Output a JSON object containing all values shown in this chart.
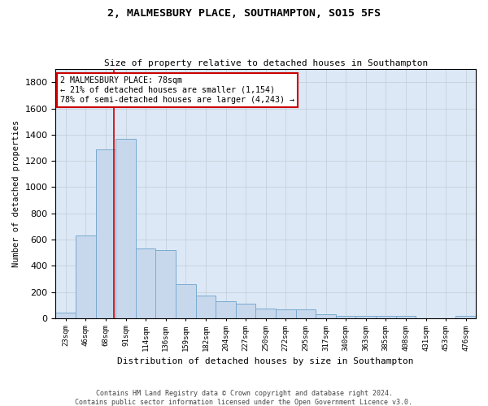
{
  "title": "2, MALMESBURY PLACE, SOUTHAMPTON, SO15 5FS",
  "subtitle": "Size of property relative to detached houses in Southampton",
  "xlabel": "Distribution of detached houses by size in Southampton",
  "ylabel": "Number of detached properties",
  "categories": [
    "23sqm",
    "46sqm",
    "68sqm",
    "91sqm",
    "114sqm",
    "136sqm",
    "159sqm",
    "182sqm",
    "204sqm",
    "227sqm",
    "250sqm",
    "272sqm",
    "295sqm",
    "317sqm",
    "340sqm",
    "363sqm",
    "385sqm",
    "408sqm",
    "431sqm",
    "453sqm",
    "476sqm"
  ],
  "values": [
    40,
    630,
    1290,
    1370,
    530,
    520,
    260,
    175,
    130,
    110,
    70,
    65,
    65,
    30,
    20,
    20,
    20,
    20,
    0,
    0,
    20
  ],
  "bar_color": "#c8d8ec",
  "bar_edge_color": "#7aaad0",
  "annotation_text": "2 MALMESBURY PLACE: 78sqm\n← 21% of detached houses are smaller (1,154)\n78% of semi-detached houses are larger (4,243) →",
  "annotation_box_color": "#ffffff",
  "annotation_box_edge": "#cc0000",
  "annotation_text_color": "#000000",
  "vline_color": "#cc0000",
  "vline_x": 2.43,
  "ylim": [
    0,
    1900
  ],
  "yticks": [
    0,
    200,
    400,
    600,
    800,
    1000,
    1200,
    1400,
    1600,
    1800
  ],
  "footer_line1": "Contains HM Land Registry data © Crown copyright and database right 2024.",
  "footer_line2": "Contains public sector information licensed under the Open Government Licence v3.0.",
  "background_color": "#ffffff",
  "plot_bg_color": "#dce8f5",
  "grid_color": "#c0cdd8"
}
